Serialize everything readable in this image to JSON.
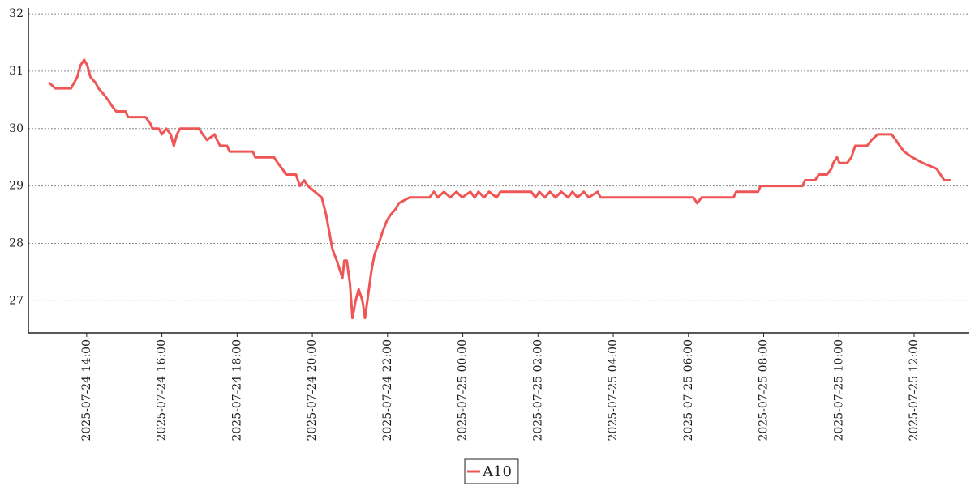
{
  "chart_data": {
    "type": "line",
    "x": [
      "2025-07-24 13:00",
      "2025-07-24 13:10",
      "2025-07-24 13:35",
      "2025-07-24 13:40",
      "2025-07-24 13:45",
      "2025-07-24 13:50",
      "2025-07-24 13:56",
      "2025-07-24 14:01",
      "2025-07-24 14:06",
      "2025-07-24 14:14",
      "2025-07-24 14:19",
      "2025-07-24 14:27",
      "2025-07-24 14:34",
      "2025-07-24 14:40",
      "2025-07-24 14:47",
      "2025-07-24 15:02",
      "2025-07-24 15:06",
      "2025-07-24 15:34",
      "2025-07-24 15:41",
      "2025-07-24 15:45",
      "2025-07-24 15:55",
      "2025-07-24 16:00",
      "2025-07-24 16:07",
      "2025-07-24 16:14",
      "2025-07-24 16:19",
      "2025-07-24 16:24",
      "2025-07-24 16:29",
      "2025-07-24 16:59",
      "2025-07-24 17:05",
      "2025-07-24 17:12",
      "2025-07-24 17:24",
      "2025-07-24 17:28",
      "2025-07-24 17:33",
      "2025-07-24 17:44",
      "2025-07-24 17:48",
      "2025-07-24 18:25",
      "2025-07-24 18:29",
      "2025-07-24 18:59",
      "2025-07-24 19:05",
      "2025-07-24 19:12",
      "2025-07-24 19:18",
      "2025-07-24 19:34",
      "2025-07-24 19:40",
      "2025-07-24 19:47",
      "2025-07-24 19:53",
      "2025-07-24 20:15",
      "2025-07-24 20:22",
      "2025-07-24 20:27",
      "2025-07-24 20:32",
      "2025-07-24 20:39",
      "2025-07-24 20:45",
      "2025-07-24 20:48",
      "2025-07-24 20:51",
      "2025-07-24 20:55",
      "2025-07-24 21:00",
      "2025-07-24 21:04",
      "2025-07-24 21:09",
      "2025-07-24 21:14",
      "2025-07-24 21:20",
      "2025-07-24 21:24",
      "2025-07-24 21:29",
      "2025-07-24 21:34",
      "2025-07-24 21:39",
      "2025-07-24 21:46",
      "2025-07-24 21:52",
      "2025-07-24 21:59",
      "2025-07-24 22:05",
      "2025-07-24 22:13",
      "2025-07-24 22:18",
      "2025-07-24 22:35",
      "2025-07-24 23:07",
      "2025-07-24 23:14",
      "2025-07-24 23:20",
      "2025-07-24 23:30",
      "2025-07-24 23:40",
      "2025-07-24 23:50",
      "2025-07-24 23:59",
      "2025-07-25 00:12",
      "2025-07-25 00:19",
      "2025-07-25 00:25",
      "2025-07-25 00:34",
      "2025-07-25 00:42",
      "2025-07-25 00:54",
      "2025-07-25 01:00",
      "2025-07-25 01:49",
      "2025-07-25 01:56",
      "2025-07-25 02:02",
      "2025-07-25 02:11",
      "2025-07-25 02:19",
      "2025-07-25 02:28",
      "2025-07-25 02:37",
      "2025-07-25 02:48",
      "2025-07-25 02:55",
      "2025-07-25 03:03",
      "2025-07-25 03:13",
      "2025-07-25 03:21",
      "2025-07-25 03:35",
      "2025-07-25 03:40",
      "2025-07-25 06:08",
      "2025-07-25 06:14",
      "2025-07-25 06:21",
      "2025-07-25 07:12",
      "2025-07-25 07:16",
      "2025-07-25 07:51",
      "2025-07-25 07:55",
      "2025-07-25 09:02",
      "2025-07-25 09:06",
      "2025-07-25 09:22",
      "2025-07-25 09:28",
      "2025-07-25 09:41",
      "2025-07-25 09:48",
      "2025-07-25 09:51",
      "2025-07-25 09:57",
      "2025-07-25 10:01",
      "2025-07-25 10:13",
      "2025-07-25 10:20",
      "2025-07-25 10:26",
      "2025-07-25 10:45",
      "2025-07-25 10:52",
      "2025-07-25 11:02",
      "2025-07-25 11:24",
      "2025-07-25 11:31",
      "2025-07-25 11:37",
      "2025-07-25 11:44",
      "2025-07-25 11:57",
      "2025-07-25 12:14",
      "2025-07-25 12:36",
      "2025-07-25 12:42",
      "2025-07-25 12:48",
      "2025-07-25 12:58"
    ],
    "series": [
      {
        "name": "A10",
        "color": "#ef5656",
        "values": [
          30.8,
          30.7,
          30.7,
          30.8,
          30.9,
          31.1,
          31.2,
          31.1,
          30.9,
          30.8,
          30.7,
          30.6,
          30.5,
          30.4,
          30.3,
          30.3,
          30.2,
          30.2,
          30.1,
          30.0,
          30.0,
          29.9,
          30.0,
          29.9,
          29.7,
          29.9,
          30.0,
          30.0,
          29.9,
          29.8,
          29.9,
          29.8,
          29.7,
          29.7,
          29.6,
          29.6,
          29.5,
          29.5,
          29.4,
          29.3,
          29.2,
          29.2,
          29.0,
          29.1,
          29.0,
          28.8,
          28.5,
          28.2,
          27.9,
          27.7,
          27.5,
          27.4,
          27.7,
          27.7,
          27.3,
          26.7,
          27.0,
          27.2,
          27.0,
          26.7,
          27.1,
          27.5,
          27.8,
          28.0,
          28.2,
          28.4,
          28.5,
          28.6,
          28.7,
          28.8,
          28.8,
          28.9,
          28.8,
          28.9,
          28.8,
          28.9,
          28.8,
          28.9,
          28.8,
          28.9,
          28.8,
          28.9,
          28.8,
          28.9,
          28.9,
          28.8,
          28.9,
          28.8,
          28.9,
          28.8,
          28.9,
          28.8,
          28.9,
          28.8,
          28.9,
          28.8,
          28.9,
          28.8,
          28.8,
          28.7,
          28.8,
          28.8,
          28.9,
          28.9,
          29.0,
          29.0,
          29.1,
          29.1,
          29.2,
          29.2,
          29.3,
          29.4,
          29.5,
          29.4,
          29.4,
          29.5,
          29.7,
          29.7,
          29.8,
          29.9,
          29.9,
          29.8,
          29.7,
          29.6,
          29.5,
          29.4,
          29.3,
          29.2,
          29.1,
          29.1
        ]
      }
    ],
    "xlim": [
      "2025-07-24 12:27",
      "2025-07-25 13:28"
    ],
    "xticks": [
      "2025-07-24 14:00",
      "2025-07-24 16:00",
      "2025-07-24 18:00",
      "2025-07-24 20:00",
      "2025-07-24 22:00",
      "2025-07-25 00:00",
      "2025-07-25 02:00",
      "2025-07-25 04:00",
      "2025-07-25 06:00",
      "2025-07-25 08:00",
      "2025-07-25 10:00",
      "2025-07-25 12:00"
    ],
    "ylim": [
      26.44,
      32.1
    ],
    "yticks": [
      27,
      28,
      29,
      30,
      31,
      32
    ],
    "grid": true,
    "legend": "bottom"
  }
}
